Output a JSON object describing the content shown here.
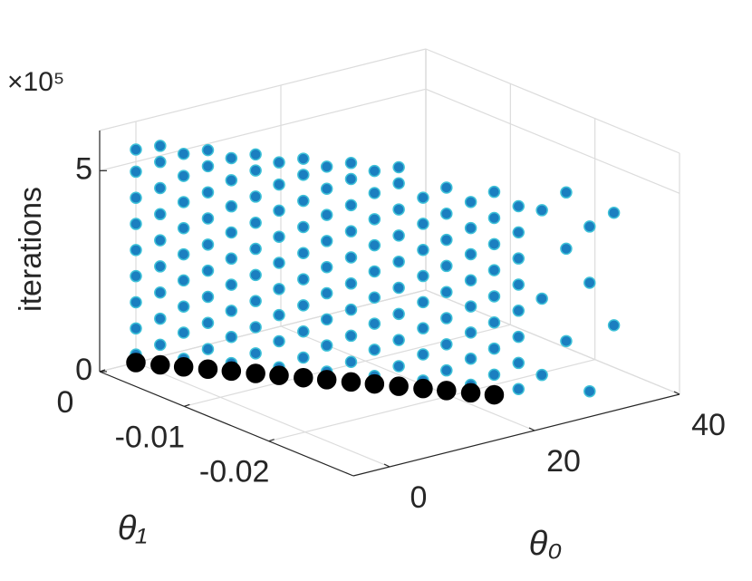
{
  "chart_data": {
    "type": "scatter3",
    "zlabel": "iterations",
    "xlabel": "θ₀",
    "ylabel": "θ₁",
    "exponent_label": "×10⁵",
    "xlim": [
      -5,
      40
    ],
    "ylim": [
      -0.03,
      0
    ],
    "zlim": [
      0,
      600000
    ],
    "xticks": [
      0,
      20,
      40
    ],
    "yticks": [
      -0.02,
      -0.01,
      0
    ],
    "zticks": [
      0,
      {
        "value": 500000,
        "label": "5"
      }
    ],
    "grid": true,
    "series": [
      {
        "color": "#1b7fc0",
        "edgecolor": "#3fc2d8",
        "x": [
          0,
          0,
          0,
          0,
          0,
          0,
          0,
          0,
          0,
          1.6,
          1.6,
          1.6,
          1.6,
          1.6,
          1.6,
          1.6,
          1.6,
          1.6,
          3.2,
          3.2,
          3.2,
          3.2,
          3.2,
          3.2,
          3.2,
          3.2,
          3.2,
          4.8,
          4.8,
          4.8,
          4.8,
          4.8,
          4.8,
          4.8,
          4.8,
          4.8,
          6.4,
          6.4,
          6.4,
          6.4,
          6.4,
          6.4,
          6.4,
          6.4,
          6.4,
          8,
          8,
          8,
          8,
          8,
          8,
          8,
          8,
          8,
          9.6,
          9.6,
          9.6,
          9.6,
          9.6,
          9.6,
          9.6,
          9.6,
          9.6,
          11.2,
          11.2,
          11.2,
          11.2,
          11.2,
          11.2,
          11.2,
          11.2,
          11.2,
          12.8,
          12.8,
          12.8,
          12.8,
          12.8,
          12.8,
          12.8,
          12.8,
          12.8,
          14.4,
          14.4,
          14.4,
          14.4,
          14.4,
          14.4,
          14.4,
          14.4,
          14.4,
          16,
          16,
          16,
          16,
          16,
          16,
          16,
          16,
          16,
          17.6,
          17.6,
          17.6,
          17.6,
          17.6,
          17.6,
          17.6,
          17.6,
          17.6,
          19.2,
          19.2,
          19.2,
          19.2,
          19.2,
          19.2,
          19.2,
          19.2,
          20.8,
          20.8,
          20.8,
          20.8,
          20.8,
          20.8,
          20.8,
          20.8,
          22.4,
          22.4,
          22.4,
          22.4,
          22.4,
          22.4,
          22.4,
          22.4,
          24,
          24,
          24,
          24,
          24,
          24,
          24,
          24,
          25.6,
          25.6,
          25.6,
          25.6,
          25.6,
          25.6,
          25.6,
          25.6,
          27.2,
          27.2,
          27.2,
          28.8,
          28.8,
          28.8,
          30.4,
          30.4,
          30.4,
          32,
          32
        ],
        "y": [
          0,
          0,
          0,
          0,
          0,
          0,
          0,
          0,
          0,
          -0.0015,
          -0.0015,
          -0.0015,
          -0.0015,
          -0.0015,
          -0.0015,
          -0.0015,
          -0.0015,
          -0.0015,
          -0.0029,
          -0.0029,
          -0.0029,
          -0.0029,
          -0.0029,
          -0.0029,
          -0.0029,
          -0.0029,
          -0.0029,
          -0.0044,
          -0.0044,
          -0.0044,
          -0.0044,
          -0.0044,
          -0.0044,
          -0.0044,
          -0.0044,
          -0.0044,
          -0.0058,
          -0.0058,
          -0.0058,
          -0.0058,
          -0.0058,
          -0.0058,
          -0.0058,
          -0.0058,
          -0.0058,
          -0.0073,
          -0.0073,
          -0.0073,
          -0.0073,
          -0.0073,
          -0.0073,
          -0.0073,
          -0.0073,
          -0.0073,
          -0.0087,
          -0.0087,
          -0.0087,
          -0.0087,
          -0.0087,
          -0.0087,
          -0.0087,
          -0.0087,
          -0.0087,
          -0.0102,
          -0.0102,
          -0.0102,
          -0.0102,
          -0.0102,
          -0.0102,
          -0.0102,
          -0.0102,
          -0.0102,
          -0.0116,
          -0.0116,
          -0.0116,
          -0.0116,
          -0.0116,
          -0.0116,
          -0.0116,
          -0.0116,
          -0.0116,
          -0.0131,
          -0.0131,
          -0.0131,
          -0.0131,
          -0.0131,
          -0.0131,
          -0.0131,
          -0.0131,
          -0.0131,
          -0.0145,
          -0.0145,
          -0.0145,
          -0.0145,
          -0.0145,
          -0.0145,
          -0.0145,
          -0.0145,
          -0.0145,
          -0.016,
          -0.016,
          -0.016,
          -0.016,
          -0.016,
          -0.016,
          -0.016,
          -0.016,
          -0.016,
          -0.0175,
          -0.0175,
          -0.0175,
          -0.0175,
          -0.0175,
          -0.0175,
          -0.0175,
          -0.0175,
          -0.0189,
          -0.0189,
          -0.0189,
          -0.0189,
          -0.0189,
          -0.0189,
          -0.0189,
          -0.0189,
          -0.0204,
          -0.0204,
          -0.0204,
          -0.0204,
          -0.0204,
          -0.0204,
          -0.0204,
          -0.0204,
          -0.0218,
          -0.0218,
          -0.0218,
          -0.0218,
          -0.0218,
          -0.0218,
          -0.0218,
          -0.0218,
          -0.0233,
          -0.0233,
          -0.0233,
          -0.0233,
          -0.0233,
          -0.0233,
          -0.0233,
          -0.0233,
          -0.0247,
          -0.0247,
          -0.0247,
          -0.0262,
          -0.0262,
          -0.0262,
          -0.0276,
          -0.0276,
          -0.0276,
          -0.0291,
          -0.0291
        ],
        "z": [
          20000,
          85000,
          150000,
          215000,
          280000,
          345000,
          410000,
          475000,
          530000,
          50000,
          115000,
          180000,
          245000,
          310000,
          375000,
          440000,
          505000,
          545000,
          20000,
          85000,
          150000,
          215000,
          280000,
          345000,
          410000,
          475000,
          530000,
          50000,
          115000,
          180000,
          245000,
          310000,
          375000,
          440000,
          505000,
          545000,
          20000,
          85000,
          150000,
          215000,
          280000,
          345000,
          410000,
          475000,
          530000,
          50000,
          115000,
          180000,
          245000,
          310000,
          375000,
          440000,
          505000,
          545000,
          20000,
          85000,
          150000,
          215000,
          280000,
          345000,
          410000,
          475000,
          530000,
          50000,
          115000,
          180000,
          245000,
          310000,
          375000,
          440000,
          505000,
          545000,
          20000,
          85000,
          150000,
          215000,
          280000,
          345000,
          410000,
          475000,
          530000,
          50000,
          115000,
          180000,
          245000,
          310000,
          375000,
          440000,
          505000,
          545000,
          20000,
          85000,
          150000,
          215000,
          280000,
          345000,
          410000,
          475000,
          530000,
          50000,
          115000,
          180000,
          245000,
          310000,
          375000,
          440000,
          505000,
          545000,
          20000,
          85000,
          150000,
          215000,
          280000,
          345000,
          410000,
          475000,
          50000,
          115000,
          180000,
          245000,
          310000,
          375000,
          440000,
          505000,
          20000,
          85000,
          150000,
          215000,
          280000,
          345000,
          410000,
          475000,
          50000,
          115000,
          180000,
          245000,
          310000,
          375000,
          440000,
          505000,
          20000,
          85000,
          150000,
          215000,
          280000,
          345000,
          410000,
          475000,
          60000,
          250000,
          470000,
          150000,
          380000,
          520000,
          30000,
          300000,
          440000,
          200000,
          480000
        ]
      },
      {
        "color": "#000000",
        "edgecolor": "#000000",
        "x": [
          0,
          1.6,
          3.2,
          4.8,
          6.4,
          8,
          9.6,
          11.2,
          12.8,
          14.4,
          16,
          17.6,
          19.2,
          20.8,
          22.4,
          24
        ],
        "y": [
          0,
          -0.0015,
          -0.0029,
          -0.0044,
          -0.0058,
          -0.0073,
          -0.0087,
          -0.0102,
          -0.0116,
          -0.0131,
          -0.0145,
          -0.016,
          -0.0175,
          -0.0189,
          -0.0204,
          -0.0218
        ],
        "z": [
          0,
          0,
          0,
          0,
          0,
          0,
          0,
          0,
          0,
          0,
          0,
          0,
          0,
          0,
          0,
          0
        ]
      }
    ]
  }
}
